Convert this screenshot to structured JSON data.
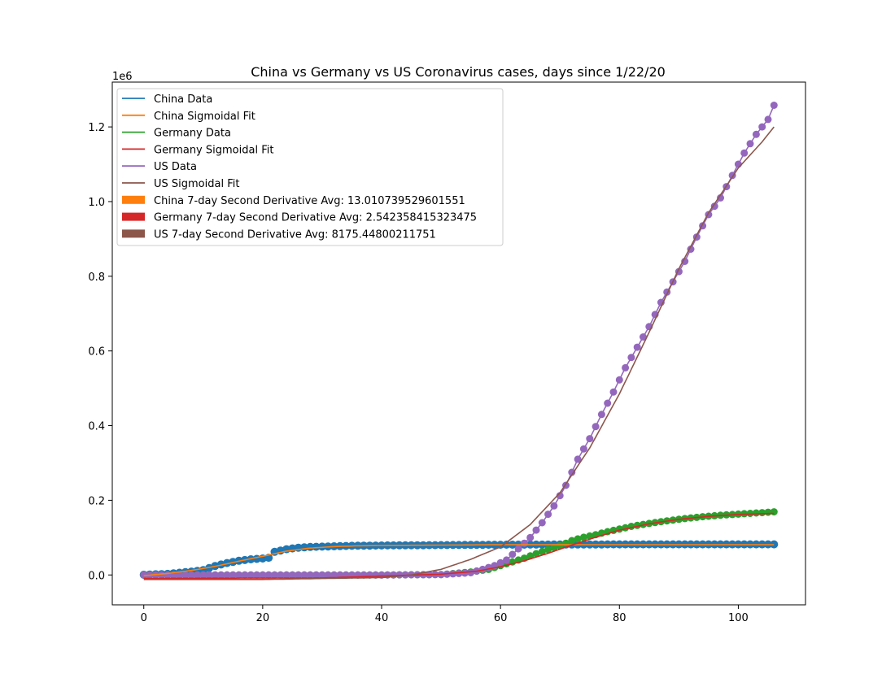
{
  "chart_data": {
    "type": "line",
    "title": "China vs Germany vs US Coronavirus cases, days since 1/22/20",
    "xlabel": "",
    "ylabel": "",
    "y_scale_label": "1e6",
    "xlim": [
      -5.3,
      111.3
    ],
    "ylim": [
      -0.08,
      1.32
    ],
    "x_ticks": [
      0,
      20,
      40,
      60,
      80,
      100
    ],
    "x_tick_labels": [
      "0",
      "20",
      "40",
      "60",
      "80",
      "100"
    ],
    "y_ticks": [
      0.0,
      0.2,
      0.4,
      0.6,
      0.8,
      1.0,
      1.2
    ],
    "y_tick_labels": [
      "0.0",
      "0.2",
      "0.4",
      "0.6",
      "0.8",
      "1.0",
      "1.2"
    ],
    "grid": false,
    "legend_position": "top-left",
    "x_range": [
      0,
      106
    ],
    "series": [
      {
        "name": "China Data",
        "kind": "data",
        "color": "#1f77b4",
        "marker_size": 10,
        "x": [
          0,
          4,
          8,
          10,
          12,
          14,
          16,
          18,
          20,
          21,
          22,
          24,
          26,
          28,
          30,
          35,
          40,
          50,
          60,
          70,
          80,
          90,
          100,
          106
        ],
        "y": [
          0.0006,
          0.003,
          0.009,
          0.013,
          0.024,
          0.032,
          0.038,
          0.042,
          0.044,
          0.046,
          0.062,
          0.069,
          0.073,
          0.075,
          0.076,
          0.078,
          0.079,
          0.08,
          0.081,
          0.0815,
          0.082,
          0.082,
          0.082,
          0.082
        ]
      },
      {
        "name": "China Sigmoidal Fit",
        "kind": "fit",
        "color": "#ff7f0e",
        "x": [
          0,
          4,
          8,
          12,
          16,
          20,
          22,
          24,
          28,
          32,
          36,
          40,
          50,
          60,
          80,
          100,
          106
        ],
        "y": [
          -0.002,
          0.004,
          0.012,
          0.023,
          0.037,
          0.05,
          0.057,
          0.064,
          0.072,
          0.076,
          0.078,
          0.079,
          0.08,
          0.081,
          0.081,
          0.081,
          0.081
        ]
      },
      {
        "name": "Germany Data",
        "kind": "data",
        "color": "#2ca02c",
        "marker_size": 9,
        "x": [
          0,
          20,
          40,
          50,
          55,
          58,
          60,
          62,
          64,
          66,
          68,
          70,
          72,
          74,
          76,
          78,
          80,
          82,
          85,
          88,
          91,
          94,
          97,
          100,
          103,
          106
        ],
        "y": [
          0,
          0,
          0,
          0.001,
          0.008,
          0.015,
          0.025,
          0.035,
          0.045,
          0.057,
          0.068,
          0.078,
          0.092,
          0.101,
          0.108,
          0.116,
          0.123,
          0.13,
          0.138,
          0.145,
          0.151,
          0.156,
          0.16,
          0.163,
          0.166,
          0.169
        ]
      },
      {
        "name": "Germany Sigmoidal Fit",
        "kind": "fit",
        "color": "#d62728",
        "x": [
          0,
          30,
          50,
          56,
          60,
          64,
          68,
          72,
          76,
          80,
          85,
          90,
          95,
          100,
          106
        ],
        "y": [
          -0.009,
          -0.008,
          0.002,
          0.01,
          0.022,
          0.038,
          0.058,
          0.08,
          0.101,
          0.12,
          0.137,
          0.149,
          0.157,
          0.162,
          0.165
        ]
      },
      {
        "name": "US Data",
        "kind": "data",
        "color": "#9467bd",
        "marker_size": 9,
        "x": [
          0,
          20,
          40,
          50,
          55,
          57,
          59,
          61,
          63,
          65,
          67,
          69,
          71,
          73,
          75,
          77,
          79,
          81,
          83,
          85,
          87,
          89,
          91,
          93,
          95,
          97,
          99,
          101,
          103,
          105,
          106
        ],
        "y": [
          0,
          0,
          0,
          0.001,
          0.006,
          0.015,
          0.025,
          0.04,
          0.07,
          0.1,
          0.14,
          0.185,
          0.24,
          0.31,
          0.365,
          0.43,
          0.49,
          0.555,
          0.61,
          0.665,
          0.73,
          0.785,
          0.84,
          0.905,
          0.965,
          1.01,
          1.07,
          1.13,
          1.18,
          1.22,
          1.258
        ]
      },
      {
        "name": "US Sigmoidal Fit",
        "kind": "fit",
        "color": "#8c564b",
        "x": [
          0,
          20,
          40,
          45,
          50,
          55,
          60,
          65,
          70,
          75,
          80,
          85,
          90,
          95,
          100,
          104,
          106
        ],
        "y": [
          -0.012,
          -0.012,
          -0.007,
          0.0,
          0.015,
          0.042,
          0.075,
          0.135,
          0.22,
          0.34,
          0.485,
          0.65,
          0.82,
          0.97,
          1.09,
          1.16,
          1.2
        ]
      }
    ],
    "legend_bars": [
      {
        "label": "China 7-day Second Derivative Avg: 13.010739529601551",
        "color": "#ff7f0e"
      },
      {
        "label": "Germany 7-day Second Derivative Avg: 2.542358415323475",
        "color": "#d62728"
      },
      {
        "label": "US 7-day Second Derivative Avg: 8175.44800211751",
        "color": "#8c564b"
      }
    ]
  }
}
